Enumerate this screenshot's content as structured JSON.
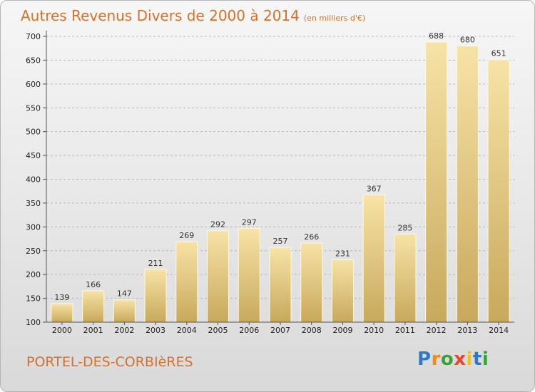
{
  "title": {
    "main": "Autres Revenus Divers de 2000 à 2014",
    "unit": "(en milliers d'€)"
  },
  "commune": "PORTEL-DES-CORBIèRES",
  "logo": {
    "text": "Proxiti",
    "letter_colors": [
      "#2f78c4",
      "#f08c1a",
      "#3aa13a",
      "#e8452c",
      "#f3c21a",
      "#2f78c4",
      "#3aa13a"
    ]
  },
  "colors": {
    "title": "#d4722a",
    "bar_light": "#f7e3a6",
    "bar_dark": "#c8a95c",
    "grid": "#b9b9b9"
  },
  "chart_data": {
    "type": "bar",
    "title": "Autres Revenus Divers de 2000 à 2014",
    "subtitle": "(en milliers d'€)",
    "xlabel": "",
    "ylabel": "",
    "categories": [
      "2000",
      "2001",
      "2002",
      "2003",
      "2004",
      "2005",
      "2006",
      "2007",
      "2008",
      "2009",
      "2010",
      "2011",
      "2012",
      "2013",
      "2014"
    ],
    "values": [
      139,
      166,
      147,
      211,
      269,
      292,
      297,
      257,
      266,
      231,
      367,
      285,
      688,
      680,
      651
    ],
    "ylim": [
      100,
      700
    ],
    "yticks": [
      100,
      150,
      200,
      250,
      300,
      350,
      400,
      450,
      500,
      550,
      600,
      650,
      700
    ],
    "grid": true,
    "data_labels": true
  }
}
